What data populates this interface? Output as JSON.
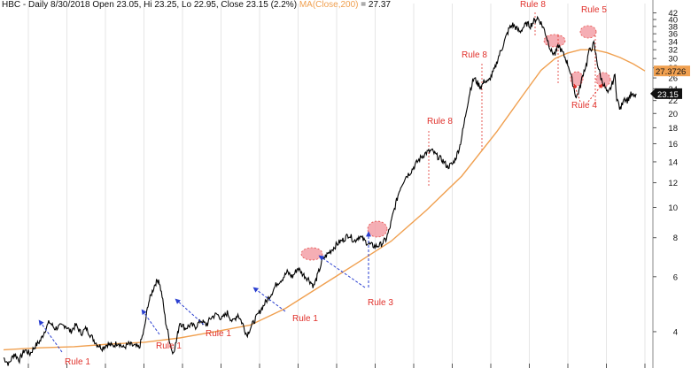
{
  "header": {
    "symbol": "HBC",
    "period": "Daily",
    "date": "8/30/2018",
    "ohlc_text": "Open 23.05, Hi 23.25, Lo 22.95, Close 23.15 (2.2%)",
    "ma_label": "MA(Close,200)",
    "ma_value_text": "= 27.37"
  },
  "colors": {
    "price": "#000000",
    "ma": "#f0a050",
    "annotation": "#e0302a",
    "arrow_blue": "#2a3fd0",
    "circle_fill": "#f4a0a8",
    "ma_tag_bg": "#f0a050",
    "price_tag_bg": "#111111"
  },
  "chart_data": {
    "type": "line",
    "title": "HBC - Daily 8/30/2018",
    "y_scale": "log",
    "ylim": [
      3.1,
      45
    ],
    "y_ticks": [
      4,
      6,
      8,
      10,
      12,
      14,
      16,
      18,
      20,
      22,
      24,
      26,
      28,
      30,
      32,
      34,
      36,
      38,
      40,
      42
    ],
    "last_price": 23.15,
    "last_price_label": "23.15",
    "ma_last": 27.3726,
    "ma_last_label": "27.3726",
    "series": [
      {
        "name": "HBC",
        "points": [
          [
            0,
            3.3
          ],
          [
            6,
            3.15
          ],
          [
            12,
            3.4
          ],
          [
            18,
            3.25
          ],
          [
            24,
            3.5
          ],
          [
            30,
            3.4
          ],
          [
            36,
            3.6
          ],
          [
            42,
            3.75
          ],
          [
            48,
            4.1
          ],
          [
            52,
            4.3
          ],
          [
            58,
            4.1
          ],
          [
            64,
            4.15
          ],
          [
            70,
            4.2
          ],
          [
            76,
            4.0
          ],
          [
            82,
            4.2
          ],
          [
            88,
            3.95
          ],
          [
            94,
            4.1
          ],
          [
            100,
            3.85
          ],
          [
            106,
            3.65
          ],
          [
            112,
            3.55
          ],
          [
            118,
            3.65
          ],
          [
            124,
            3.6
          ],
          [
            130,
            3.7
          ],
          [
            136,
            3.55
          ],
          [
            142,
            3.65
          ],
          [
            148,
            3.6
          ],
          [
            154,
            3.55
          ],
          [
            160,
            4.1
          ],
          [
            164,
            4.9
          ],
          [
            168,
            5.3
          ],
          [
            172,
            5.7
          ],
          [
            176,
            5.9
          ],
          [
            180,
            5.2
          ],
          [
            184,
            4.3
          ],
          [
            188,
            3.8
          ],
          [
            192,
            3.4
          ],
          [
            196,
            3.7
          ],
          [
            200,
            4.3
          ],
          [
            206,
            4.1
          ],
          [
            212,
            4.2
          ],
          [
            218,
            4.15
          ],
          [
            224,
            4.35
          ],
          [
            230,
            4.2
          ],
          [
            236,
            4.45
          ],
          [
            242,
            4.55
          ],
          [
            248,
            4.4
          ],
          [
            254,
            4.6
          ],
          [
            260,
            4.3
          ],
          [
            266,
            4.55
          ],
          [
            272,
            4.2
          ],
          [
            276,
            3.9
          ],
          [
            280,
            4.1
          ],
          [
            286,
            4.4
          ],
          [
            292,
            4.7
          ],
          [
            298,
            5.0
          ],
          [
            304,
            5.3
          ],
          [
            310,
            5.7
          ],
          [
            316,
            5.9
          ],
          [
            322,
            6.2
          ],
          [
            328,
            6.0
          ],
          [
            334,
            6.4
          ],
          [
            340,
            6.1
          ],
          [
            346,
            5.9
          ],
          [
            352,
            5.6
          ],
          [
            356,
            6.0
          ],
          [
            362,
            6.8
          ],
          [
            368,
            7.1
          ],
          [
            374,
            7.4
          ],
          [
            380,
            7.7
          ],
          [
            386,
            7.9
          ],
          [
            392,
            8.2
          ],
          [
            398,
            7.8
          ],
          [
            404,
            8.1
          ],
          [
            410,
            7.8
          ],
          [
            416,
            7.6
          ],
          [
            422,
            7.5
          ],
          [
            428,
            7.6
          ],
          [
            434,
            7.9
          ],
          [
            438,
            8.5
          ],
          [
            442,
            9.5
          ],
          [
            446,
            10.5
          ],
          [
            450,
            11.5
          ],
          [
            456,
            12.5
          ],
          [
            462,
            13.0
          ],
          [
            468,
            13.8
          ],
          [
            474,
            14.5
          ],
          [
            480,
            15.0
          ],
          [
            486,
            15.2
          ],
          [
            492,
            14.6
          ],
          [
            498,
            14.2
          ],
          [
            504,
            13.5
          ],
          [
            510,
            13.8
          ],
          [
            514,
            14.6
          ],
          [
            518,
            15.8
          ],
          [
            522,
            18.0
          ],
          [
            526,
            21.0
          ],
          [
            530,
            24.0
          ],
          [
            534,
            26.0
          ],
          [
            538,
            25.0
          ],
          [
            542,
            24.3
          ],
          [
            546,
            25.5
          ],
          [
            550,
            25.2
          ],
          [
            554,
            26.5
          ],
          [
            558,
            28.0
          ],
          [
            562,
            30.5
          ],
          [
            566,
            32.5
          ],
          [
            570,
            35.0
          ],
          [
            574,
            37.5
          ],
          [
            578,
            38.5
          ],
          [
            582,
            37.5
          ],
          [
            586,
            36.5
          ],
          [
            590,
            37.8
          ],
          [
            594,
            38.8
          ],
          [
            598,
            38.2
          ],
          [
            602,
            39.5
          ],
          [
            606,
            40.5
          ],
          [
            610,
            39.0
          ],
          [
            614,
            37.0
          ],
          [
            618,
            34.0
          ],
          [
            622,
            31.5
          ],
          [
            626,
            31.0
          ],
          [
            630,
            33.0
          ],
          [
            634,
            31.5
          ],
          [
            638,
            30.0
          ],
          [
            642,
            28.0
          ],
          [
            646,
            25.0
          ],
          [
            650,
            22.5
          ],
          [
            654,
            24.0
          ],
          [
            658,
            27.0
          ],
          [
            662,
            29.0
          ],
          [
            664,
            31.5
          ],
          [
            668,
            32.5
          ],
          [
            670,
            33.5
          ],
          [
            674,
            29.0
          ],
          [
            678,
            26.0
          ],
          [
            682,
            24.5
          ],
          [
            686,
            23.0
          ],
          [
            690,
            24.5
          ],
          [
            694,
            26.5
          ],
          [
            696,
            22.5
          ],
          [
            700,
            20.5
          ],
          [
            704,
            22.5
          ],
          [
            708,
            22.0
          ],
          [
            712,
            23.0
          ],
          [
            716,
            22.6
          ],
          [
            718,
            23.15
          ]
        ]
      },
      {
        "name": "MA(Close,200)",
        "points": [
          [
            0,
            3.5
          ],
          [
            40,
            3.55
          ],
          [
            80,
            3.58
          ],
          [
            120,
            3.65
          ],
          [
            160,
            3.7
          ],
          [
            200,
            3.82
          ],
          [
            240,
            4.0
          ],
          [
            280,
            4.2
          ],
          [
            320,
            4.75
          ],
          [
            360,
            5.6
          ],
          [
            400,
            6.6
          ],
          [
            440,
            7.8
          ],
          [
            480,
            9.8
          ],
          [
            520,
            12.6
          ],
          [
            560,
            17.5
          ],
          [
            590,
            23.0
          ],
          [
            610,
            27.5
          ],
          [
            626,
            30.0
          ],
          [
            640,
            31.2
          ],
          [
            655,
            32.0
          ],
          [
            670,
            32.0
          ],
          [
            685,
            31.3
          ],
          [
            700,
            30.2
          ],
          [
            715,
            28.8
          ],
          [
            728,
            27.37
          ]
        ]
      }
    ],
    "annotations": [
      {
        "text": "Rule 1"
      },
      {
        "text": "Rule 1"
      },
      {
        "text": "Rule 1"
      },
      {
        "text": "Rule 1"
      },
      {
        "text": "Rule 3"
      },
      {
        "text": "Rule 8"
      },
      {
        "text": "Rule 8"
      },
      {
        "text": "Rule 8"
      },
      {
        "text": "Rule 5"
      },
      {
        "text": "Rule 4"
      }
    ]
  }
}
